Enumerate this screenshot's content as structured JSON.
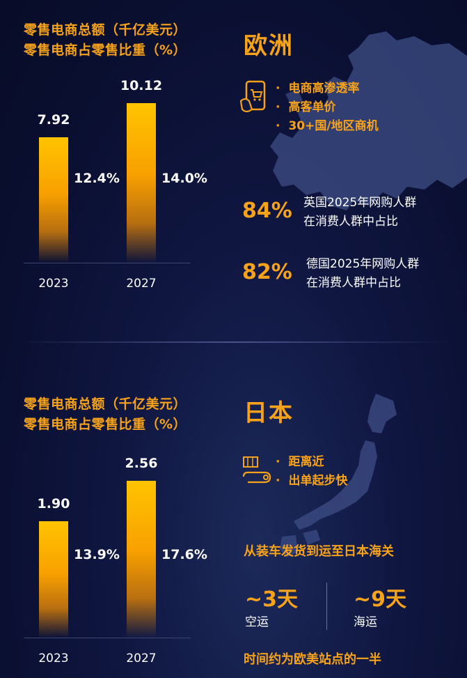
{
  "europe": {
    "chart_data": {
      "type": "bar",
      "title_line1": "零售电商总额（千亿美元）",
      "title_line2": "零售电商占零售比重（%）",
      "categories": [
        "2023",
        "2027"
      ],
      "values": [
        7.92,
        10.12
      ],
      "value_labels": [
        "7.92",
        "10.12"
      ],
      "share_labels": [
        "12.4%",
        "14.0%"
      ],
      "shares": [
        12.4,
        14.0
      ],
      "ylim": [
        0,
        12
      ]
    },
    "region_title": "欧洲",
    "bullets": [
      "电商高渗透率",
      "高客单价",
      "30+国/地区商机"
    ],
    "stats": [
      {
        "value": "84%",
        "line1": "英国2025年网购人群",
        "line2": "在消费人群中占比"
      },
      {
        "value": "82%",
        "line1": "德国2025年网购人群",
        "line2": "在消费人群中占比"
      }
    ],
    "icon": "phone-cart-icon"
  },
  "japan": {
    "chart_data": {
      "type": "bar",
      "title_line1": "零售电商总额（千亿美元）",
      "title_line2": "零售电商占零售比重（%）",
      "categories": [
        "2023",
        "2027"
      ],
      "values": [
        1.9,
        2.56
      ],
      "value_labels": [
        "1.90",
        "2.56"
      ],
      "share_labels": [
        "13.9%",
        "17.6%"
      ],
      "shares": [
        13.9,
        17.6
      ],
      "ylim": [
        0,
        3.0
      ]
    },
    "region_title": "日本",
    "bullets": [
      "距离近",
      "出单起步快"
    ],
    "icon": "truck-route-icon",
    "shipping_heading": "从装车发货到运至日本海关",
    "shipping": [
      {
        "days": "~3天",
        "mode": "空运"
      },
      {
        "days": "~9天",
        "mode": "海运"
      }
    ],
    "footer_note": "时间约为欧美站点的一半"
  },
  "colors": {
    "accent": "#f7a21b",
    "background": "#0a0f30"
  }
}
